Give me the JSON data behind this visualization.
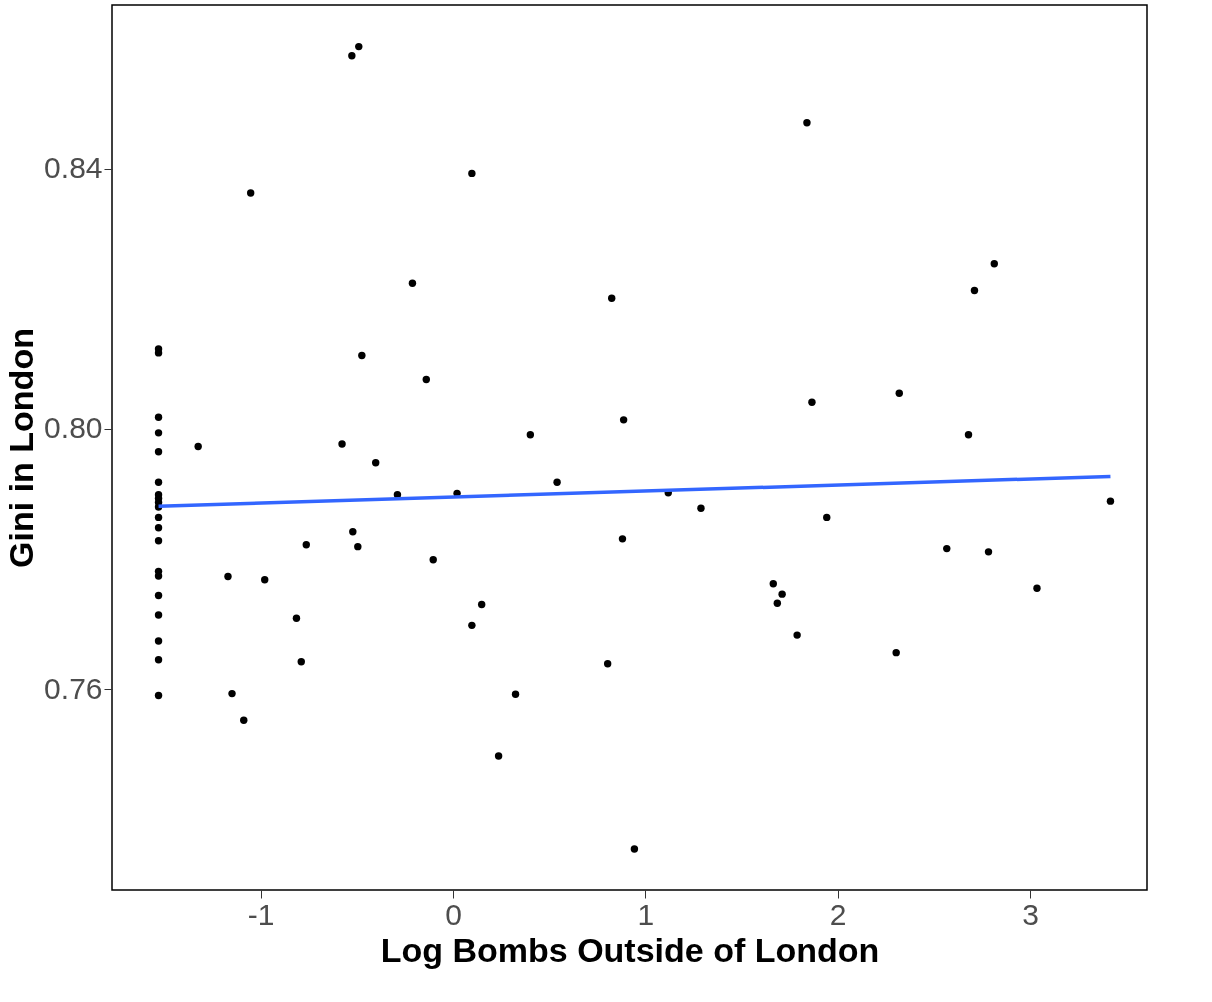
{
  "chart_data": {
    "type": "scatter",
    "xlabel": "Log Bombs Outside of London",
    "ylabel": "Gini in London",
    "xlim": [
      -1.773,
      3.608
    ],
    "ylim": [
      0.7291,
      0.8652
    ],
    "xticks": [
      -1,
      0,
      1,
      2,
      3
    ],
    "yticks": [
      {
        "value": 0.76,
        "label": "0.76"
      },
      {
        "value": 0.8,
        "label": "0.80"
      },
      {
        "value": 0.84,
        "label": "0.84"
      }
    ],
    "grid": false,
    "series": [
      {
        "marker": "circle",
        "color": "#000000",
        "x": [
          -1.531,
          -1.531,
          -1.531,
          -1.531,
          -1.531,
          -1.531,
          -1.531,
          -1.531,
          -1.531,
          -1.531,
          -1.531,
          -1.531,
          -1.531,
          -1.531,
          -1.531,
          -1.531,
          -1.531,
          -1.531,
          -1.531,
          -1.531,
          -1.325,
          -1.17,
          -1.149,
          -1.088,
          -1.052,
          -0.979,
          -0.814,
          -0.789,
          -0.763,
          -0.577,
          -0.526,
          -0.49,
          -0.521,
          -0.495,
          -0.474,
          -0.402,
          -0.289,
          -0.211,
          -0.139,
          -0.103,
          0.021,
          0.098,
          0.098,
          0.149,
          0.237,
          0.325,
          0.402,
          0.541,
          0.804,
          0.825,
          0.881,
          0.887,
          0.943,
          1.119,
          1.289,
          1.665,
          1.686,
          1.711,
          1.789,
          1.84,
          1.866,
          1.943,
          2.304,
          2.32,
          2.567,
          2.68,
          2.711,
          2.784,
          2.814,
          3.036,
          3.418
        ],
        "values": [
          0.8123,
          0.8117,
          0.8018,
          0.7994,
          0.7965,
          0.7918,
          0.7899,
          0.7893,
          0.7887,
          0.788,
          0.7864,
          0.7848,
          0.7828,
          0.7781,
          0.7774,
          0.7744,
          0.7714,
          0.7674,
          0.7645,
          0.759,
          0.7973,
          0.7773,
          0.7593,
          0.7552,
          0.8363,
          0.7768,
          0.7709,
          0.7642,
          0.7822,
          0.7977,
          0.8574,
          0.8588,
          0.7842,
          0.7819,
          0.8113,
          0.7948,
          0.7899,
          0.8224,
          0.8076,
          0.7799,
          0.7901,
          0.8393,
          0.7698,
          0.773,
          0.7497,
          0.7592,
          0.7991,
          0.7918,
          0.7639,
          0.8201,
          0.7831,
          0.8014,
          0.7354,
          0.7902,
          0.7878,
          0.7762,
          0.7732,
          0.7746,
          0.7683,
          0.8471,
          0.8041,
          0.7864,
          0.7656,
          0.8055,
          0.7816,
          0.7991,
          0.8213,
          0.7811,
          0.8254,
          0.7755,
          0.7889
        ]
      },
      {
        "type": "line",
        "color": "#3366ff",
        "x": [
          -1.531,
          3.418
        ],
        "values": [
          0.7881,
          0.7927
        ]
      }
    ]
  }
}
